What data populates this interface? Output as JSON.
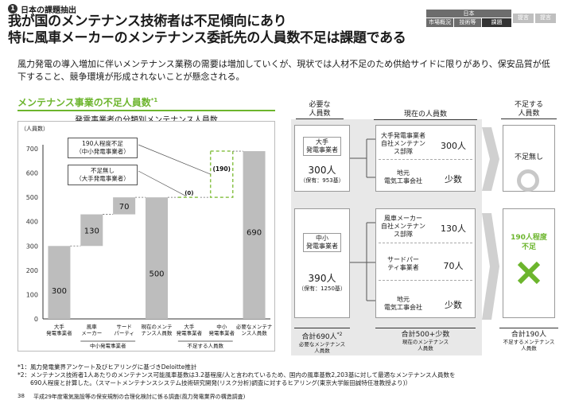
{
  "header": {
    "section_number": "1",
    "section_label": "日本の課題抽出",
    "title_line1": "我が国のメンテナンス技術者は不足傾向にあり",
    "title_line2": "特に風車メーカーのメンテナンス委託先の人員数不足は課題である",
    "nav_caption": "日本",
    "nav_steps": [
      "市場概況",
      "技術等",
      "課題",
      "提言",
      "提言"
    ]
  },
  "lead": "風力発電の導入増加に伴いメンテナンス業務の需要は増加していくが、現状では人材不足のため供給サイドに限りがあり、保安品質が低下すること、競争環境が形成されないことが懸念される。",
  "section_heading": "メンテナンス事業の不足人員数",
  "section_heading_sup": "*1",
  "chart_data": {
    "type": "bar",
    "title": "発電事業者の分類別メンテナンス人員数",
    "ylabel": "（人員数）",
    "ylim": [
      0,
      700
    ],
    "yticks": [
      "0",
      "100",
      "200",
      "300",
      "400",
      "500",
      "600",
      "700"
    ],
    "categories": [
      "大手\n発電事業者",
      "風車\nメーカー",
      "サード\nパーティ",
      "現在のメンテ\nナンス人員数",
      "大手\n発電事業者",
      "中小\n発電事業者",
      "必要なメンテナ\nンス人員数"
    ],
    "category_lines": [
      [
        "大手",
        "発電事業者"
      ],
      [
        "風車",
        "メーカー"
      ],
      [
        "サード",
        "パーティ"
      ],
      [
        "現在のメンテ",
        "ナンス人員数"
      ],
      [
        "大手",
        "発電事業者"
      ],
      [
        "中小",
        "発電事業者"
      ],
      [
        "必要なメンテナ",
        "ンス人員数"
      ]
    ],
    "group_labels": [
      "中小発電事業者",
      "不足する人員数"
    ],
    "bars": [
      {
        "base": 0,
        "value": 300,
        "label": "300",
        "kind": "solid"
      },
      {
        "base": 300,
        "value": 130,
        "label": "130",
        "kind": "solid"
      },
      {
        "base": 430,
        "value": 70,
        "label": "70",
        "kind": "solid"
      },
      {
        "base": 0,
        "value": 500,
        "label": "500",
        "kind": "solid"
      },
      {
        "base": 500,
        "value": 0,
        "label": "(0)",
        "kind": "dash"
      },
      {
        "base": 500,
        "value": 190,
        "label": "(190)",
        "kind": "dash"
      },
      {
        "base": 0,
        "value": 690,
        "label": "690",
        "kind": "solid"
      }
    ],
    "callouts": [
      {
        "line1": "190人程度不足",
        "line2": "（中小発電事業者）"
      },
      {
        "line1": "不足無し",
        "line2": "（大手発電事業者）"
      }
    ]
  },
  "right": {
    "col_headers": [
      {
        "l1": "必要な",
        "l2": "人員数"
      },
      {
        "l1": "現在の人員数",
        "l2": ""
      },
      {
        "l1": "不足する",
        "l2": "人員数"
      }
    ],
    "large": {
      "label_l1": "大手",
      "label_l2": "発電事業者",
      "count": "300人",
      "sub": "（保有：953基）",
      "rows": [
        {
          "name_lines": [
            "大手発電事業者",
            "自社メンテナン",
            "ス部隊"
          ],
          "value": "300人"
        },
        {
          "name_lines": [
            "地元",
            "電気工事会社"
          ],
          "value": "少数"
        }
      ],
      "shortage": "不足無し"
    },
    "small": {
      "label_l1": "中小",
      "label_l2": "発電事業者",
      "count": "390人",
      "sub": "（保有：1250基）",
      "rows": [
        {
          "name_lines": [
            "風車メーカー",
            "自社メンテナン",
            "ス部隊"
          ],
          "value": "130人"
        },
        {
          "name_lines": [
            "サードパー",
            "ティ事業者"
          ],
          "value": "70人"
        },
        {
          "name_lines": [
            "地元",
            "電気工事会社"
          ],
          "value": "少数"
        }
      ],
      "shortage_l1": "190人程度",
      "shortage_l2": "不足"
    },
    "totals": [
      {
        "l1": "合計690人",
        "sup": "*2",
        "l2": "必要なメンテナンス",
        "l3": "人員数"
      },
      {
        "l1": "合計500+少数",
        "sup": "",
        "l2": "現在のメンテナンス",
        "l3": "人員数"
      },
      {
        "l1": "合計190人",
        "sup": "",
        "l2": "不足するメンテナンス",
        "l3": "人員数"
      }
    ]
  },
  "footnotes": [
    "*1：風力発電業界アンケート及びヒアリングに基づきDeloitte推計",
    "*2：メンテナンス技術者1人あたりのメンテナンス可能風車基数は3.2基程度/人と言われているため、国内の風車基数2,203基に対して最適なメンテナンス人員数を",
    "690人程度と計算した。（スマートメンテナンスシステム技術研究開発(リスク分析)調査に対するヒアリング(東京大学飯田誠特任准教授より)）"
  ],
  "page_number": "38",
  "source": "平成29年度電気施設等の保安規制の合理化検討に係る調査(風力発電業界の構造調査)"
}
